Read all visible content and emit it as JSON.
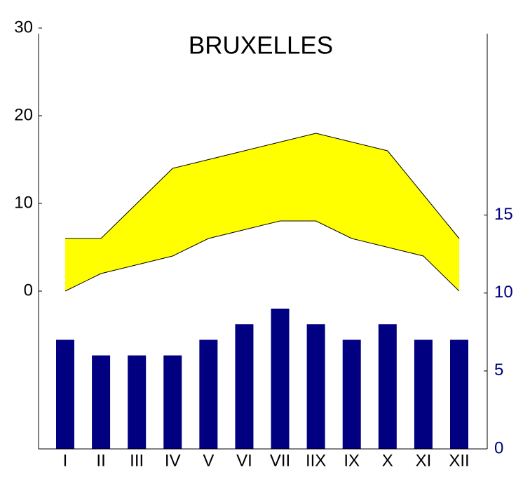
{
  "chart_data": {
    "type": "climate",
    "title": "BRUXELLES",
    "categories": [
      "I",
      "II",
      "III",
      "IV",
      "V",
      "VI",
      "VII",
      "IIX",
      "IX",
      "X",
      "XI",
      "XII"
    ],
    "series": [
      {
        "type": "area-band",
        "color": "#ffff00",
        "values": [
          6,
          6,
          10,
          14,
          15,
          16,
          17,
          18,
          17,
          16,
          11,
          6
        ],
        "low": [
          0,
          2,
          3,
          4,
          6,
          7,
          8,
          8,
          6,
          5,
          4,
          0
        ]
      },
      {
        "type": "bar",
        "color": "#000080",
        "axis": "y2",
        "values": [
          7,
          6,
          6,
          6,
          7,
          8,
          9,
          8,
          7,
          8,
          7,
          7
        ]
      }
    ],
    "ylim": [
      -18,
      30
    ],
    "yticks": [
      0,
      10,
      20,
      30
    ],
    "y2lim": [
      0,
      27
    ],
    "y2ticks": [
      0,
      5,
      10,
      15
    ],
    "y2color": "#000080"
  }
}
